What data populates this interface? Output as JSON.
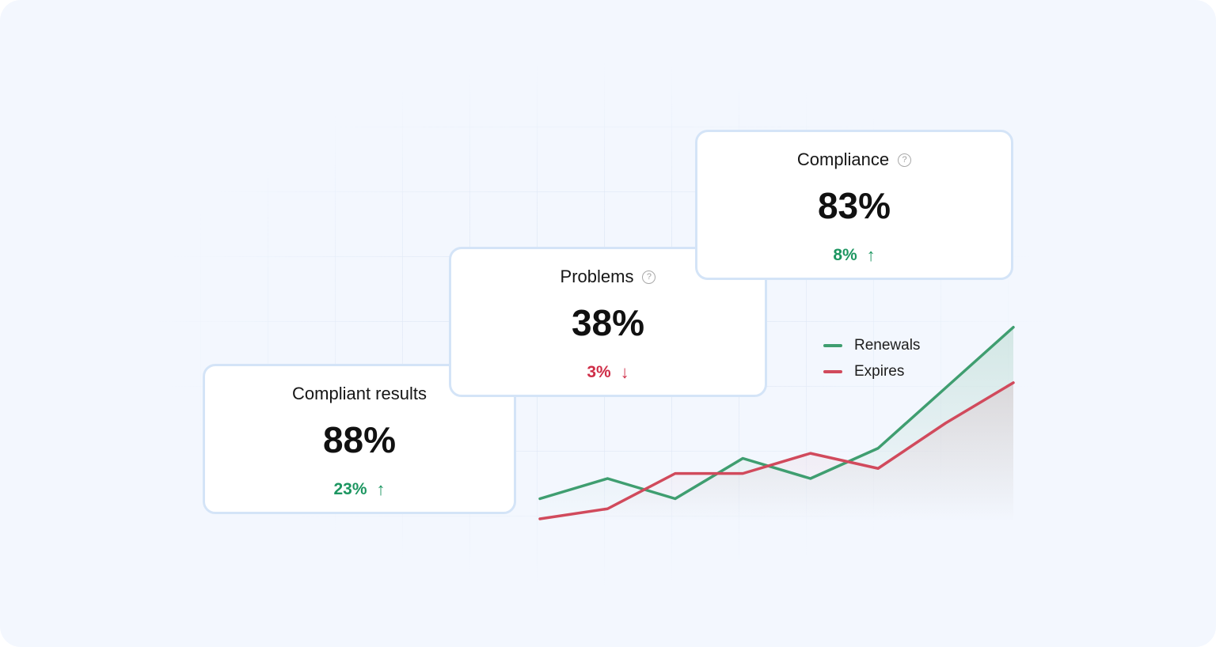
{
  "cards": [
    {
      "title": "Compliant results",
      "value": "88%",
      "change": "23%",
      "direction": "up",
      "arrow": "↑",
      "has_help": false
    },
    {
      "title": "Problems",
      "value": "38%",
      "change": "3%",
      "direction": "down",
      "arrow": "↓",
      "has_help": true
    },
    {
      "title": "Compliance",
      "value": "83%",
      "change": "8%",
      "direction": "up",
      "arrow": "↑",
      "has_help": true
    }
  ],
  "help_icon": {
    "glyph": "?",
    "name": "help-icon"
  },
  "colors": {
    "renewals": "#3f9e70",
    "expires": "#d14a5c",
    "up": "#1d9661",
    "down": "#cf2e48"
  },
  "chart_data": {
    "type": "line",
    "x": [
      0,
      1,
      2,
      3,
      4,
      5,
      6,
      7
    ],
    "series": [
      {
        "name": "Renewals",
        "values": [
          4,
          8,
          4,
          12,
          8,
          14,
          26,
          38
        ],
        "color": "#3f9e70"
      },
      {
        "name": "Expires",
        "values": [
          0,
          2,
          9,
          9,
          13,
          10,
          19,
          27
        ],
        "color": "#d14a5c"
      }
    ],
    "ylim": [
      0,
      40
    ],
    "legend": "top-right",
    "grid": false
  }
}
